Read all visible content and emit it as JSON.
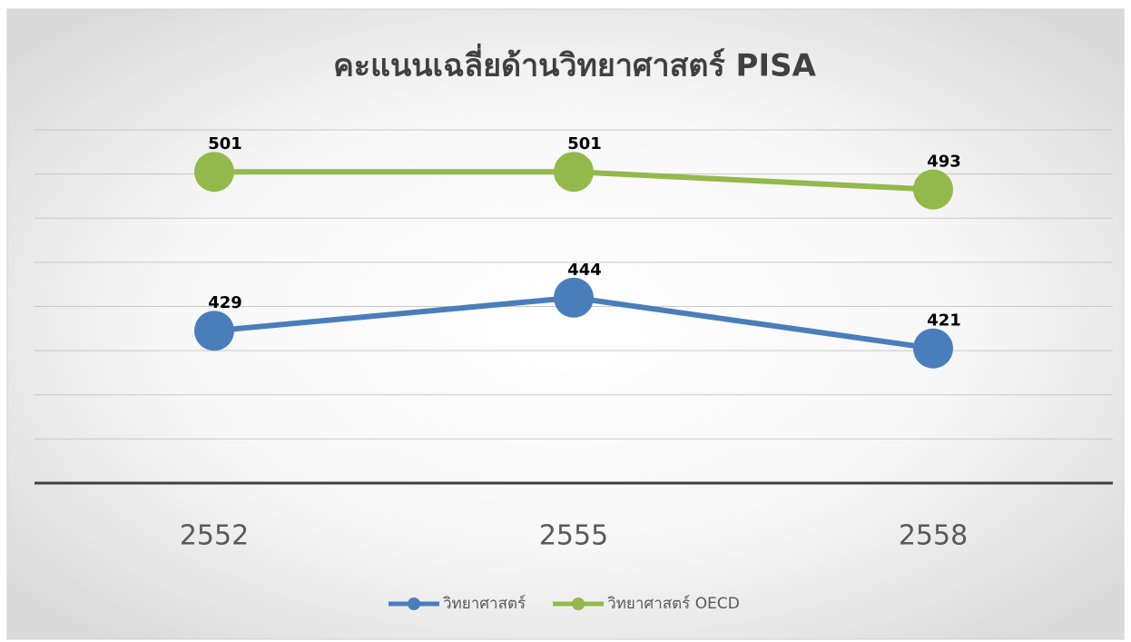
{
  "chart_data": {
    "type": "line",
    "title": "คะแนนเฉลี่ยด้านวิทยาศาสตร์ PISA",
    "categories": [
      "2552",
      "2555",
      "2558"
    ],
    "series": [
      {
        "name": "วิทยาศาสตร์",
        "color": "#4a7ebb",
        "values": [
          429,
          444,
          421
        ]
      },
      {
        "name": "วิทยาศาสตร์ OECD",
        "color": "#93b84c",
        "values": [
          501,
          501,
          493
        ]
      }
    ],
    "ylim": [
      360,
      520
    ],
    "yticks": [
      360,
      380,
      400,
      420,
      440,
      460,
      480,
      500,
      520
    ],
    "grid": true,
    "legend": "bottom"
  }
}
